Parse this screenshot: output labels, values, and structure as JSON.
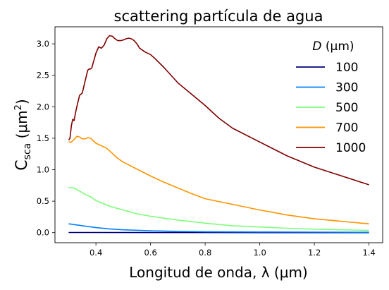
{
  "chart_data": {
    "type": "line",
    "title": "scattering partícula de agua",
    "xlabel": "Longitud de onda, λ (μm)",
    "ylabel_main": "C",
    "ylabel_sub": "sca",
    "ylabel_rest": " (μm",
    "ylabel_sup": "2",
    "ylabel_close": ")",
    "xlim": [
      0.25,
      1.45
    ],
    "ylim": [
      -0.16,
      3.27
    ],
    "xticks": [
      0.4,
      0.6,
      0.8,
      1.0,
      1.2,
      1.4
    ],
    "xtick_labels": [
      "0.4",
      "0.6",
      "0.8",
      "1.0",
      "1.2",
      "1.4"
    ],
    "yticks": [
      0.0,
      0.5,
      1.0,
      1.5,
      2.0,
      2.5,
      3.0
    ],
    "ytick_labels": [
      "0.0",
      "0.5",
      "1.0",
      "1.5",
      "2.0",
      "2.5",
      "3.0"
    ],
    "grid": false,
    "legend_position": "upper-right",
    "legend_title_italic": "D",
    "legend_title_rest": " (μm)",
    "series": [
      {
        "name": "100",
        "color": "#00007f",
        "x": [
          0.3,
          0.4,
          0.6,
          0.8,
          1.0,
          1.2,
          1.4
        ],
        "y": [
          0.003,
          0.002,
          0.001,
          0.001,
          0.0,
          0.0,
          0.0
        ]
      },
      {
        "name": "300",
        "color": "#0080ff",
        "x": [
          0.3,
          0.35,
          0.4,
          0.45,
          0.5,
          0.6,
          0.7,
          0.8,
          1.0,
          1.2,
          1.4
        ],
        "y": [
          0.14,
          0.11,
          0.08,
          0.06,
          0.045,
          0.03,
          0.02,
          0.015,
          0.01,
          0.008,
          0.006
        ]
      },
      {
        "name": "500",
        "color": "#7dff7a",
        "x": [
          0.3,
          0.32,
          0.34,
          0.36,
          0.38,
          0.4,
          0.45,
          0.5,
          0.55,
          0.6,
          0.7,
          0.8,
          0.9,
          1.0,
          1.1,
          1.2,
          1.3,
          1.4
        ],
        "y": [
          0.72,
          0.71,
          0.66,
          0.61,
          0.57,
          0.51,
          0.42,
          0.36,
          0.3,
          0.26,
          0.2,
          0.15,
          0.11,
          0.09,
          0.07,
          0.055,
          0.045,
          0.035
        ]
      },
      {
        "name": "700",
        "color": "#ff9400",
        "x": [
          0.3,
          0.31,
          0.32,
          0.33,
          0.34,
          0.35,
          0.36,
          0.37,
          0.38,
          0.39,
          0.4,
          0.42,
          0.44,
          0.46,
          0.48,
          0.5,
          0.55,
          0.6,
          0.65,
          0.7,
          0.75,
          0.8,
          0.9,
          1.0,
          1.1,
          1.2,
          1.3,
          1.4
        ],
        "y": [
          1.44,
          1.44,
          1.48,
          1.53,
          1.52,
          1.49,
          1.49,
          1.51,
          1.5,
          1.46,
          1.42,
          1.38,
          1.34,
          1.26,
          1.18,
          1.12,
          1.01,
          0.9,
          0.8,
          0.71,
          0.62,
          0.54,
          0.45,
          0.36,
          0.28,
          0.22,
          0.18,
          0.14
        ]
      },
      {
        "name": "1000",
        "color": "#7f0000",
        "x": [
          0.3,
          0.305,
          0.31,
          0.315,
          0.32,
          0.325,
          0.33,
          0.34,
          0.345,
          0.35,
          0.36,
          0.37,
          0.375,
          0.38,
          0.385,
          0.39,
          0.4,
          0.41,
          0.415,
          0.42,
          0.43,
          0.44,
          0.45,
          0.46,
          0.47,
          0.48,
          0.49,
          0.5,
          0.51,
          0.52,
          0.53,
          0.54,
          0.55,
          0.56,
          0.58,
          0.6,
          0.62,
          0.65,
          0.7,
          0.75,
          0.8,
          0.85,
          0.9,
          1.0,
          1.1,
          1.2,
          1.3,
          1.4
        ],
        "y": [
          1.47,
          1.5,
          1.7,
          1.8,
          1.78,
          1.9,
          2.0,
          2.18,
          2.2,
          2.22,
          2.4,
          2.58,
          2.6,
          2.6,
          2.62,
          2.7,
          2.85,
          2.95,
          2.94,
          2.93,
          2.98,
          3.08,
          3.13,
          3.12,
          3.08,
          3.05,
          3.05,
          3.06,
          3.08,
          3.09,
          3.08,
          3.05,
          3.0,
          2.93,
          2.87,
          2.83,
          2.75,
          2.62,
          2.38,
          2.2,
          2.02,
          1.82,
          1.66,
          1.44,
          1.22,
          1.04,
          0.9,
          0.76
        ]
      }
    ]
  }
}
